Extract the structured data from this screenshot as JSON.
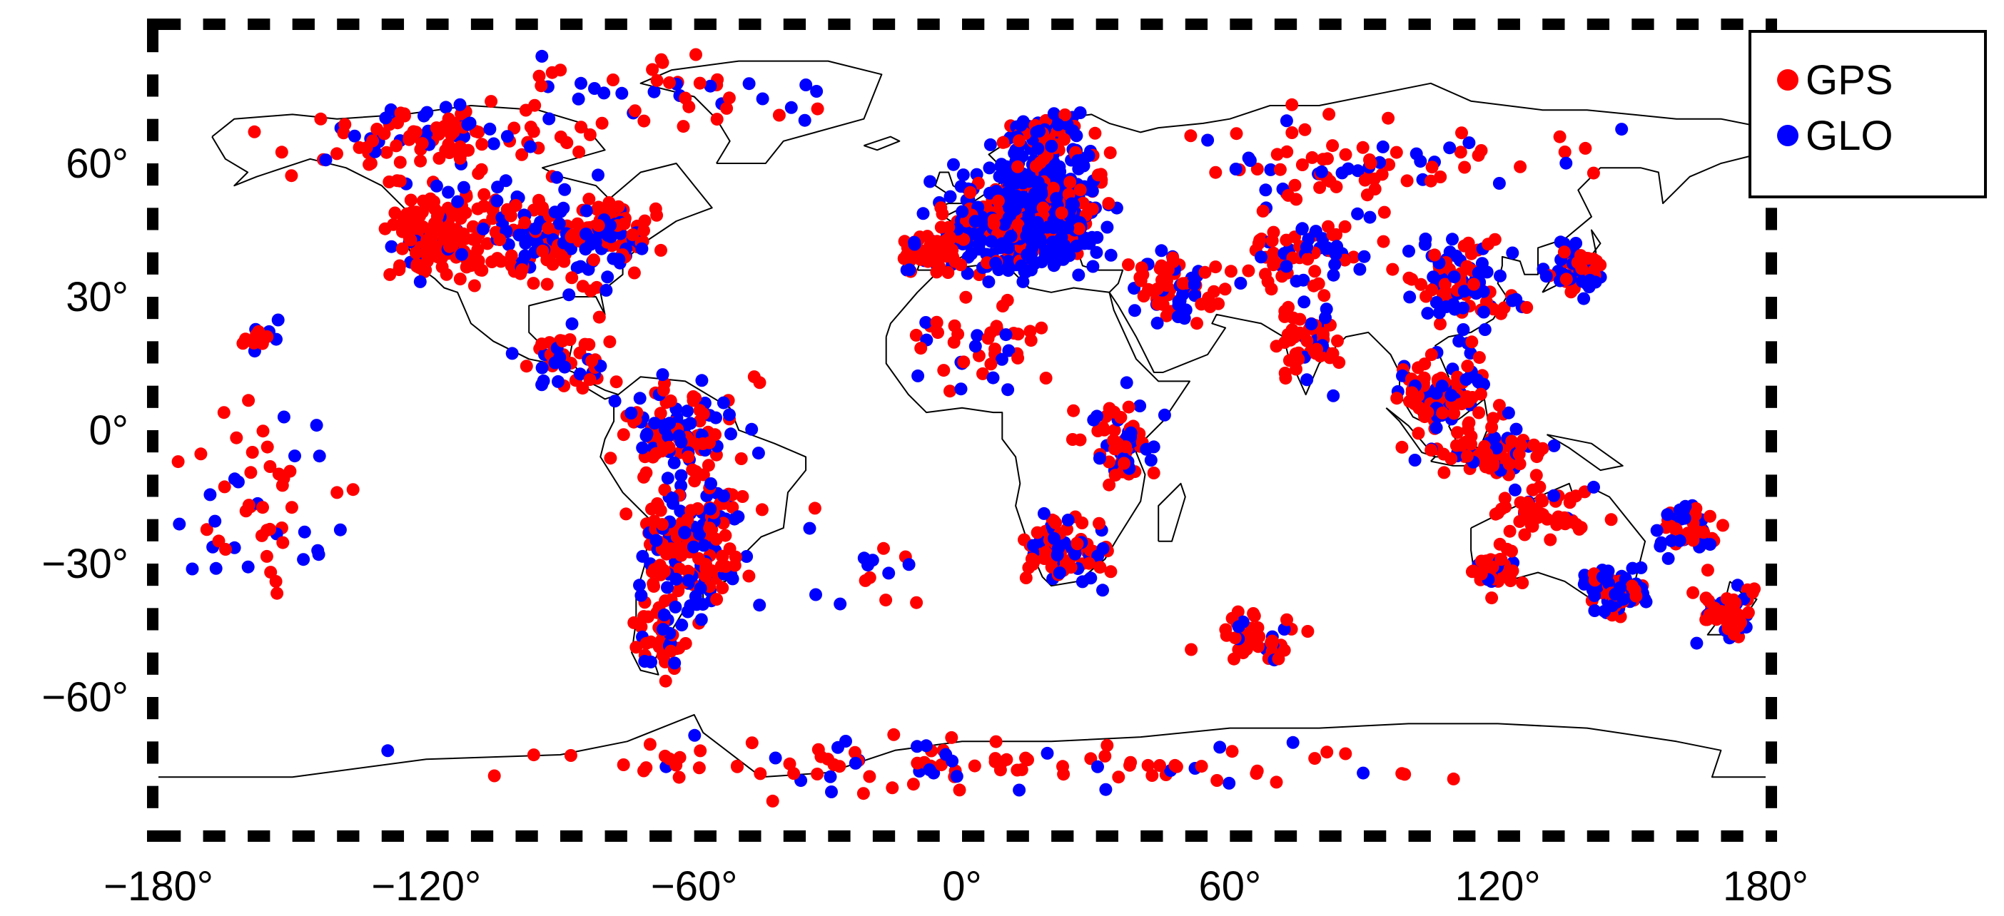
{
  "map": {
    "projection": "equirectangular",
    "lon_range": [
      -180,
      180
    ],
    "lat_range": [
      -90,
      90
    ],
    "frame_style": "alternating black-white checkered border",
    "coastline": "thin black outline of continents"
  },
  "axes": {
    "x_ticks": [
      {
        "value": -180,
        "label": "−180"
      },
      {
        "value": -120,
        "label": "−120"
      },
      {
        "value": -60,
        "label": "−60"
      },
      {
        "value": 0,
        "label": "0"
      },
      {
        "value": 60,
        "label": "60"
      },
      {
        "value": 120,
        "label": "120"
      },
      {
        "value": 180,
        "label": "180"
      }
    ],
    "y_ticks": [
      {
        "value": 60,
        "label": "60"
      },
      {
        "value": 30,
        "label": "30"
      },
      {
        "value": 0,
        "label": "0"
      },
      {
        "value": -30,
        "label": "−30"
      },
      {
        "value": -60,
        "label": "−60"
      }
    ],
    "degree_symbol": "°"
  },
  "legend": {
    "placement": "top-right",
    "entries": [
      {
        "label": "GPS",
        "color": "#ff0000"
      },
      {
        "label": "GLO",
        "color": "#0000ff"
      }
    ]
  },
  "colors": {
    "gps": "#ff0000",
    "glo": "#0000ff",
    "coast": "#000000"
  },
  "clusters": [
    {
      "id": "north-america-west",
      "lon": -118,
      "lat": 44,
      "slon": 9,
      "slat": 9,
      "n": 130,
      "gps_frac": 0.85
    },
    {
      "id": "north-america-central",
      "lon": -95,
      "lat": 44,
      "slon": 14,
      "slat": 10,
      "n": 120,
      "gps_frac": 0.6
    },
    {
      "id": "north-america-east",
      "lon": -78,
      "lat": 44,
      "slon": 8,
      "slat": 7,
      "n": 80,
      "gps_frac": 0.55
    },
    {
      "id": "canada-alaska",
      "lon": -115,
      "lat": 65,
      "slon": 28,
      "slat": 8,
      "n": 110,
      "gps_frac": 0.75
    },
    {
      "id": "greenland-arctic",
      "lon": -65,
      "lat": 76,
      "slon": 25,
      "slat": 6,
      "n": 45,
      "gps_frac": 0.6
    },
    {
      "id": "central-america",
      "lon": -88,
      "lat": 15,
      "slon": 10,
      "slat": 7,
      "n": 45,
      "gps_frac": 0.6
    },
    {
      "id": "south-america-north",
      "lon": -62,
      "lat": 0,
      "slon": 12,
      "slat": 9,
      "n": 100,
      "gps_frac": 0.5
    },
    {
      "id": "south-america-south",
      "lon": -60,
      "lat": -25,
      "slon": 10,
      "slat": 12,
      "n": 170,
      "gps_frac": 0.5
    },
    {
      "id": "patagonia",
      "lon": -68,
      "lat": -47,
      "slon": 5,
      "slat": 7,
      "n": 45,
      "gps_frac": 0.55
    },
    {
      "id": "europe-core",
      "lon": 14,
      "lat": 48,
      "slon": 13,
      "slat": 9,
      "n": 620,
      "gps_frac": 0.2
    },
    {
      "id": "iberia",
      "lon": -8,
      "lat": 40,
      "slon": 5,
      "slat": 4,
      "n": 60,
      "gps_frac": 0.8
    },
    {
      "id": "scandinavia",
      "lon": 18,
      "lat": 64,
      "slon": 9,
      "slat": 6,
      "n": 90,
      "gps_frac": 0.3
    },
    {
      "id": "africa-north",
      "lon": 5,
      "lat": 20,
      "slon": 15,
      "slat": 8,
      "n": 45,
      "gps_frac": 0.6
    },
    {
      "id": "africa-east",
      "lon": 36,
      "lat": -2,
      "slon": 7,
      "slat": 9,
      "n": 70,
      "gps_frac": 0.5
    },
    {
      "id": "africa-south",
      "lon": 24,
      "lat": -27,
      "slon": 8,
      "slat": 6,
      "n": 85,
      "gps_frac": 0.7
    },
    {
      "id": "middle-east",
      "lon": 48,
      "lat": 32,
      "slon": 10,
      "slat": 6,
      "n": 70,
      "gps_frac": 0.6
    },
    {
      "id": "russia-siberia",
      "lon": 90,
      "lat": 60,
      "slon": 35,
      "slat": 8,
      "n": 80,
      "gps_frac": 0.7
    },
    {
      "id": "central-asia",
      "lon": 78,
      "lat": 40,
      "slon": 12,
      "slat": 7,
      "n": 70,
      "gps_frac": 0.6
    },
    {
      "id": "india",
      "lon": 78,
      "lat": 20,
      "slon": 6,
      "slat": 8,
      "n": 55,
      "gps_frac": 0.7
    },
    {
      "id": "china",
      "lon": 112,
      "lat": 33,
      "slon": 10,
      "slat": 9,
      "n": 100,
      "gps_frac": 0.55
    },
    {
      "id": "japan",
      "lon": 137,
      "lat": 36,
      "slon": 5,
      "slat": 5,
      "n": 60,
      "gps_frac": 0.4
    },
    {
      "id": "southeast-asia",
      "lon": 108,
      "lat": 8,
      "slon": 9,
      "slat": 6,
      "n": 110,
      "gps_frac": 0.6
    },
    {
      "id": "indonesia",
      "lon": 118,
      "lat": -5,
      "slon": 11,
      "slat": 4,
      "n": 80,
      "gps_frac": 0.75
    },
    {
      "id": "australia-north",
      "lon": 130,
      "lat": -18,
      "slon": 10,
      "slat": 5,
      "n": 50,
      "gps_frac": 0.8
    },
    {
      "id": "australia-west",
      "lon": 120,
      "lat": -32,
      "slon": 5,
      "slat": 4,
      "n": 40,
      "gps_frac": 0.85
    },
    {
      "id": "australia-southeast",
      "lon": 146,
      "lat": -36,
      "slon": 5,
      "slat": 4,
      "n": 110,
      "gps_frac": 0.45
    },
    {
      "id": "new-zealand",
      "lon": 172,
      "lat": -41,
      "slon": 5,
      "slat": 5,
      "n": 55,
      "gps_frac": 0.8
    },
    {
      "id": "pacific-east",
      "lon": 163,
      "lat": -23,
      "slon": 6,
      "slat": 5,
      "n": 50,
      "gps_frac": 0.4
    },
    {
      "id": "pacific-west-islands",
      "lon": -158,
      "lat": -15,
      "slon": 15,
      "slat": 18,
      "n": 55,
      "gps_frac": 0.6
    },
    {
      "id": "hawaii",
      "lon": -157,
      "lat": 21,
      "slon": 4,
      "slat": 3,
      "n": 15,
      "gps_frac": 0.7
    },
    {
      "id": "south-atlantic",
      "lon": -20,
      "lat": -30,
      "slon": 10,
      "slat": 15,
      "n": 15,
      "gps_frac": 0.6
    },
    {
      "id": "indian-ocean-south",
      "lon": 68,
      "lat": -47,
      "slon": 10,
      "slat": 5,
      "n": 40,
      "gps_frac": 0.85
    },
    {
      "id": "antarctica",
      "lon": 0,
      "lat": -75,
      "slon": 90,
      "slat": 5,
      "n": 110,
      "gps_frac": 0.6
    }
  ]
}
